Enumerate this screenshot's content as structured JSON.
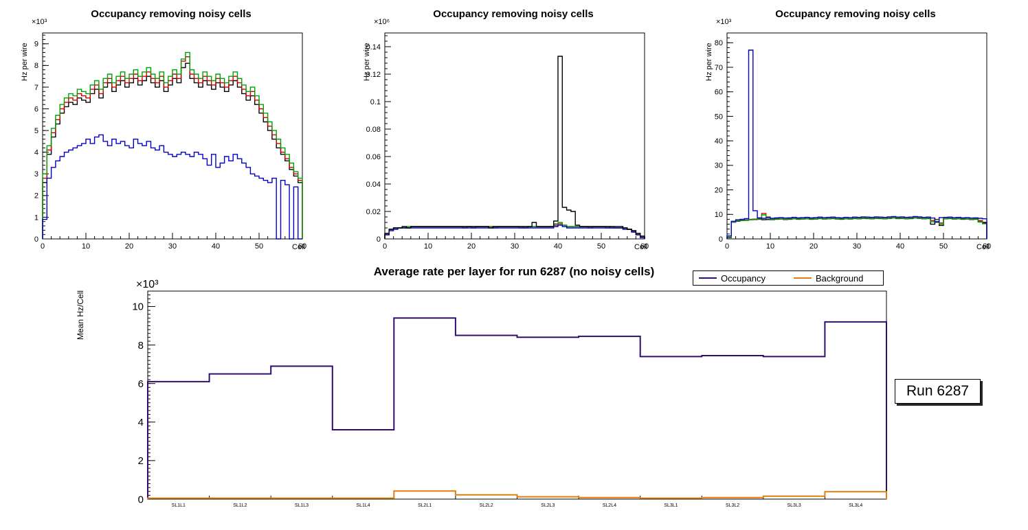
{
  "run_label": {
    "text": "Run 6287"
  },
  "legend": {
    "items": [
      "Occupancy",
      "Background"
    ]
  },
  "chart_data": [
    {
      "type": "histogram-step",
      "title": "Occupancy removing noisy cells",
      "xlabel": "Cell",
      "ylabel": "Hz per wire",
      "y_scale_label": "×10³",
      "xlim": [
        0,
        60
      ],
      "ylim": [
        0,
        9.5
      ],
      "grid": false,
      "legend_position": "none",
      "x_ticks": [
        0,
        10,
        20,
        30,
        40,
        50,
        60
      ],
      "x_tick_labels": [
        "0",
        "10",
        "20",
        "30",
        "40",
        "50",
        "60"
      ],
      "y_ticks": [
        0,
        1,
        2,
        3,
        4,
        5,
        6,
        7,
        8,
        9
      ],
      "y_tick_labels": [
        "0",
        "1",
        "2",
        "3",
        "4",
        "5",
        "6",
        "7",
        "8",
        "9"
      ],
      "series": [
        {
          "color": "#000000",
          "values": [
            2.6,
            3.9,
            4.7,
            5.3,
            5.8,
            6.1,
            6.3,
            6.2,
            6.5,
            6.4,
            6.3,
            6.7,
            6.9,
            6.5,
            7.0,
            7.2,
            6.8,
            7.1,
            7.3,
            7.0,
            7.2,
            7.4,
            7.1,
            7.3,
            7.5,
            7.2,
            7.0,
            7.3,
            6.8,
            7.1,
            7.4,
            7.2,
            7.9,
            8.1,
            7.4,
            7.2,
            7.0,
            7.3,
            7.1,
            6.9,
            7.2,
            7.0,
            6.8,
            7.1,
            7.3,
            7.0,
            6.7,
            6.4,
            6.6,
            6.2,
            5.8,
            5.4,
            5.0,
            4.6,
            4.2,
            3.9,
            3.6,
            3.2,
            2.9,
            2.6
          ]
        },
        {
          "color": "#cc0000",
          "values": [
            2.8,
            4.1,
            4.9,
            5.5,
            6.0,
            6.3,
            6.5,
            6.4,
            6.7,
            6.6,
            6.5,
            6.9,
            7.1,
            6.7,
            7.2,
            7.4,
            7.0,
            7.3,
            7.5,
            7.2,
            7.4,
            7.6,
            7.3,
            7.5,
            7.7,
            7.4,
            7.2,
            7.5,
            7.0,
            7.3,
            7.6,
            7.4,
            8.2,
            8.4,
            7.6,
            7.4,
            7.2,
            7.5,
            7.3,
            7.1,
            7.4,
            7.2,
            7.0,
            7.3,
            7.5,
            7.2,
            6.9,
            6.6,
            6.8,
            6.4,
            6.0,
            5.6,
            5.2,
            4.8,
            4.4,
            4.0,
            3.7,
            3.3,
            3.0,
            2.7
          ]
        },
        {
          "color": "#00a000",
          "values": [
            3.0,
            4.3,
            5.1,
            5.7,
            6.2,
            6.5,
            6.7,
            6.6,
            6.9,
            6.8,
            6.7,
            7.1,
            7.3,
            6.9,
            7.4,
            7.6,
            7.2,
            7.5,
            7.7,
            7.4,
            7.6,
            7.8,
            7.5,
            7.7,
            7.9,
            7.6,
            7.4,
            7.7,
            7.2,
            7.5,
            7.8,
            7.6,
            8.3,
            8.6,
            7.8,
            7.6,
            7.4,
            7.7,
            7.5,
            7.3,
            7.6,
            7.4,
            7.2,
            7.5,
            7.7,
            7.4,
            7.1,
            6.8,
            7.0,
            6.6,
            6.2,
            5.8,
            5.4,
            5.0,
            4.6,
            4.2,
            3.9,
            3.5,
            3.1,
            2.8
          ]
        },
        {
          "color": "#0000cc",
          "values": [
            0.9,
            2.8,
            3.3,
            3.6,
            3.8,
            4.0,
            4.1,
            4.2,
            4.3,
            4.4,
            4.6,
            4.4,
            4.7,
            4.8,
            4.5,
            4.3,
            4.6,
            4.4,
            4.5,
            4.3,
            4.2,
            4.6,
            4.4,
            4.3,
            4.5,
            4.2,
            4.1,
            4.3,
            4.0,
            3.9,
            3.8,
            3.9,
            4.0,
            3.9,
            3.8,
            4.0,
            3.9,
            3.7,
            3.4,
            3.9,
            3.3,
            3.5,
            3.8,
            3.6,
            3.9,
            3.7,
            3.5,
            3.3,
            3.0,
            2.9,
            2.8,
            2.7,
            2.6,
            2.8,
            0.0,
            2.7,
            2.5,
            0.0,
            2.4,
            0.0
          ]
        }
      ]
    },
    {
      "type": "histogram-step",
      "title": "Occupancy removing noisy cells",
      "xlabel": "Cell",
      "ylabel": "Hz per wire",
      "y_scale_label": "×10⁶",
      "xlim": [
        0,
        60
      ],
      "ylim": [
        0,
        0.15
      ],
      "grid": false,
      "legend_position": "none",
      "x_ticks": [
        0,
        10,
        20,
        30,
        40,
        50,
        60
      ],
      "x_tick_labels": [
        "0",
        "10",
        "20",
        "30",
        "40",
        "50",
        "60"
      ],
      "y_ticks": [
        0,
        0.02,
        0.04,
        0.06,
        0.08,
        0.1,
        0.12,
        0.14
      ],
      "y_tick_labels": [
        "0",
        "0.02",
        "0.04",
        "0.06",
        "0.08",
        "0.1",
        "0.12",
        "0.14"
      ],
      "series": [
        {
          "color": "#cc0000",
          "values": [
            0.003,
            0.007,
            0.008,
            0.008,
            0.008,
            0.008,
            0.009,
            0.009,
            0.009,
            0.009,
            0.009,
            0.009,
            0.009,
            0.009,
            0.009,
            0.009,
            0.009,
            0.009,
            0.009,
            0.009,
            0.008,
            0.009,
            0.009,
            0.009,
            0.009,
            0.009,
            0.009,
            0.009,
            0.009,
            0.009,
            0.009,
            0.009,
            0.008,
            0.009,
            0.009,
            0.009,
            0.009,
            0.009,
            0.009,
            0.01,
            0.011,
            0.01,
            0.009,
            0.009,
            0.009,
            0.009,
            0.009,
            0.009,
            0.009,
            0.009,
            0.009,
            0.009,
            0.008,
            0.008,
            0.008,
            0.008,
            0.007,
            0.005,
            0.003,
            0.001
          ]
        },
        {
          "color": "#00a000",
          "values": [
            0.004,
            0.007,
            0.008,
            0.008,
            0.008,
            0.009,
            0.009,
            0.009,
            0.009,
            0.009,
            0.009,
            0.009,
            0.009,
            0.009,
            0.009,
            0.009,
            0.009,
            0.009,
            0.008,
            0.009,
            0.009,
            0.009,
            0.009,
            0.009,
            0.009,
            0.008,
            0.009,
            0.009,
            0.009,
            0.009,
            0.009,
            0.008,
            0.009,
            0.009,
            0.009,
            0.009,
            0.009,
            0.009,
            0.009,
            0.011,
            0.012,
            0.01,
            0.009,
            0.009,
            0.009,
            0.009,
            0.009,
            0.008,
            0.009,
            0.009,
            0.009,
            0.008,
            0.009,
            0.008,
            0.008,
            0.008,
            0.007,
            0.006,
            0.004,
            0.002
          ]
        },
        {
          "color": "#0000cc",
          "values": [
            0.003,
            0.006,
            0.007,
            0.008,
            0.008,
            0.008,
            0.008,
            0.008,
            0.008,
            0.008,
            0.008,
            0.008,
            0.008,
            0.008,
            0.008,
            0.008,
            0.008,
            0.008,
            0.008,
            0.008,
            0.008,
            0.008,
            0.008,
            0.008,
            0.008,
            0.008,
            0.008,
            0.008,
            0.008,
            0.008,
            0.008,
            0.008,
            0.008,
            0.008,
            0.008,
            0.008,
            0.008,
            0.008,
            0.008,
            0.009,
            0.01,
            0.009,
            0.008,
            0.008,
            0.008,
            0.008,
            0.008,
            0.008,
            0.008,
            0.008,
            0.008,
            0.008,
            0.008,
            0.008,
            0.008,
            0.007,
            0.007,
            0.005,
            0.003,
            0.001
          ]
        },
        {
          "color": "#000000",
          "values": [
            0.004,
            0.007,
            0.008,
            0.008,
            0.009,
            0.008,
            0.009,
            0.009,
            0.009,
            0.009,
            0.009,
            0.009,
            0.009,
            0.009,
            0.009,
            0.009,
            0.009,
            0.009,
            0.009,
            0.009,
            0.009,
            0.009,
            0.009,
            0.009,
            0.008,
            0.009,
            0.009,
            0.009,
            0.009,
            0.009,
            0.009,
            0.009,
            0.009,
            0.009,
            0.012,
            0.009,
            0.009,
            0.009,
            0.009,
            0.013,
            0.133,
            0.023,
            0.021,
            0.02,
            0.01,
            0.009,
            0.009,
            0.009,
            0.009,
            0.009,
            0.009,
            0.009,
            0.009,
            0.009,
            0.009,
            0.008,
            0.007,
            0.006,
            0.004,
            0.002
          ]
        }
      ]
    },
    {
      "type": "histogram-step",
      "title": "Occupancy removing noisy cells",
      "xlabel": "Cell",
      "ylabel": "Hz per wire",
      "y_scale_label": "×10³",
      "xlim": [
        0,
        60
      ],
      "ylim": [
        0,
        84
      ],
      "grid": false,
      "legend_position": "none",
      "x_ticks": [
        0,
        10,
        20,
        30,
        40,
        50,
        60
      ],
      "x_tick_labels": [
        "0",
        "10",
        "20",
        "30",
        "40",
        "50",
        "60"
      ],
      "y_ticks": [
        0,
        10,
        20,
        30,
        40,
        50,
        60,
        70,
        80
      ],
      "y_tick_labels": [
        "0",
        "10",
        "20",
        "30",
        "40",
        "50",
        "60",
        "70",
        "80"
      ],
      "series": [
        {
          "color": "#000000",
          "values": [
            0.5,
            6.8,
            7.2,
            7.5,
            7.6,
            7.8,
            7.9,
            8.0,
            7.8,
            7.9,
            7.8,
            8.0,
            8.1,
            7.9,
            8.0,
            8.2,
            8.0,
            8.1,
            8.2,
            8.0,
            8.1,
            8.3,
            8.1,
            8.2,
            8.3,
            8.1,
            8.0,
            8.2,
            8.1,
            8.3,
            8.2,
            8.4,
            8.3,
            8.2,
            8.4,
            8.3,
            8.2,
            8.4,
            8.5,
            8.3,
            8.4,
            8.2,
            8.3,
            8.5,
            8.4,
            8.2,
            8.3,
            6.0,
            7.0,
            5.5,
            8.2,
            8.3,
            8.1,
            8.2,
            8.0,
            8.1,
            7.9,
            8.0,
            7.0,
            6.5
          ]
        },
        {
          "color": "#cc0000",
          "values": [
            0.6,
            7.0,
            7.4,
            7.7,
            7.8,
            8.0,
            8.1,
            8.2,
            10.4,
            9.0,
            8.0,
            8.2,
            8.3,
            8.1,
            8.2,
            8.4,
            8.2,
            8.3,
            8.4,
            8.2,
            8.3,
            8.5,
            8.3,
            8.4,
            8.5,
            8.3,
            8.2,
            8.4,
            8.3,
            8.5,
            8.4,
            8.6,
            8.5,
            8.4,
            8.6,
            8.5,
            8.4,
            8.6,
            8.7,
            8.5,
            8.6,
            8.4,
            8.5,
            8.7,
            8.6,
            8.4,
            8.5,
            7.5,
            8.0,
            6.5,
            8.4,
            8.5,
            8.3,
            8.4,
            8.2,
            8.3,
            8.1,
            8.2,
            7.5,
            6.8
          ]
        },
        {
          "color": "#00a000",
          "values": [
            0.7,
            6.9,
            7.3,
            7.6,
            7.7,
            7.9,
            8.0,
            8.1,
            9.8,
            8.8,
            7.9,
            8.1,
            8.2,
            8.0,
            8.1,
            8.3,
            8.1,
            8.2,
            8.3,
            8.1,
            8.2,
            8.4,
            8.2,
            8.3,
            8.4,
            8.2,
            8.1,
            8.3,
            8.2,
            8.4,
            8.3,
            8.5,
            8.4,
            8.3,
            8.5,
            8.4,
            8.3,
            8.5,
            8.6,
            8.4,
            8.5,
            8.3,
            8.4,
            8.6,
            8.5,
            8.3,
            8.4,
            7.0,
            7.8,
            6.0,
            8.3,
            8.4,
            8.2,
            8.3,
            8.1,
            8.2,
            8.0,
            8.1,
            7.2,
            6.2
          ]
        },
        {
          "color": "#0000cc",
          "values": [
            1.2,
            7.2,
            7.8,
            8.0,
            8.3,
            77.0,
            11.5,
            8.6,
            8.4,
            8.5,
            8.4,
            8.6,
            8.7,
            8.5,
            8.6,
            8.8,
            8.6,
            8.7,
            8.8,
            8.6,
            8.7,
            8.9,
            8.7,
            8.8,
            8.9,
            8.7,
            8.6,
            8.8,
            8.7,
            8.9,
            8.8,
            9.0,
            8.9,
            8.8,
            9.0,
            8.9,
            8.8,
            9.0,
            9.1,
            8.9,
            9.0,
            8.8,
            8.9,
            9.1,
            9.0,
            8.8,
            8.9,
            8.5,
            6.8,
            8.7,
            8.8,
            8.9,
            8.7,
            8.8,
            8.6,
            8.7,
            8.5,
            8.6,
            8.4,
            8.2
          ]
        }
      ]
    },
    {
      "type": "step-line",
      "title": "Average rate per layer for run 6287 (no noisy cells)",
      "xlabel": "",
      "ylabel": "Mean Hz/Cell",
      "y_scale_label": "×10³",
      "categories": [
        "SL1L1",
        "SL1L2",
        "SL1L3",
        "SL1L4",
        "SL2L1",
        "SL2L2",
        "SL2L3",
        "SL2L4",
        "SL3L1",
        "SL3L2",
        "SL3L3",
        "SL3L4"
      ],
      "ylim": [
        0,
        10.8
      ],
      "grid": false,
      "legend_position": "top-right",
      "y_ticks": [
        0,
        2,
        4,
        6,
        8,
        10
      ],
      "y_tick_labels": [
        "0",
        "2",
        "4",
        "6",
        "8",
        "10"
      ],
      "series": [
        {
          "name": "Occupancy",
          "color": "#2f0c6e",
          "values": [
            6.1,
            6.5,
            6.9,
            3.6,
            9.4,
            8.5,
            8.4,
            8.45,
            7.4,
            7.45,
            7.4,
            9.2
          ]
        },
        {
          "name": "Background",
          "color": "#dd8012",
          "values": [
            0.05,
            0.05,
            0.05,
            0.05,
            0.42,
            0.22,
            0.12,
            0.08,
            0.05,
            0.08,
            0.15,
            0.38
          ]
        }
      ]
    }
  ]
}
